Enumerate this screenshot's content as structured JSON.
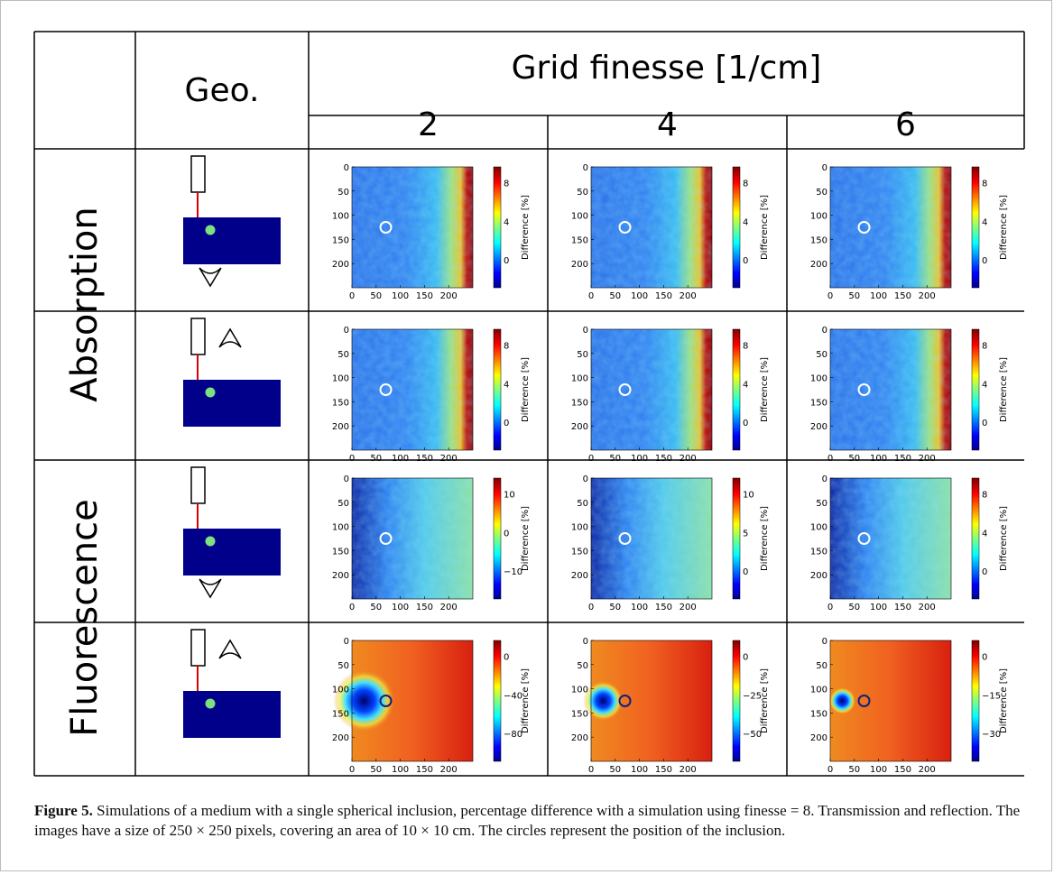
{
  "header": {
    "geo": "Geo.",
    "grid_title": "Grid finesse [1/cm]",
    "finesse": [
      "2",
      "4",
      "6"
    ]
  },
  "groups": [
    "Absorption",
    "Fluorescence"
  ],
  "axis": {
    "range": [
      0,
      250
    ],
    "ticks": [
      0,
      50,
      100,
      150,
      200
    ],
    "colorbar_label": "Difference [%]"
  },
  "panels": [
    [
      [
        "8",
        "4",
        "0"
      ],
      [
        "8",
        "4",
        "0"
      ],
      [
        "8",
        "4",
        "0"
      ]
    ],
    [
      [
        "8",
        "4",
        "0"
      ],
      [
        "8",
        "4",
        "0"
      ],
      [
        "8",
        "4",
        "0"
      ]
    ],
    [
      [
        "10",
        "0",
        "−10"
      ],
      [
        "10",
        "5",
        "0"
      ],
      [
        "8",
        "4",
        "0"
      ]
    ],
    [
      [
        "0",
        "−40",
        "−80"
      ],
      [
        "0",
        "−25",
        "−50"
      ],
      [
        "0",
        "−15",
        "−30"
      ]
    ]
  ],
  "caption": {
    "label": "Figure 5.",
    "text": "Simulations of a medium with a single spherical inclusion, percentage difference with a simulation using finesse = 8. Transmission and reflection. The images have a size of 250 × 250 pixels, covering an area of 10 × 10 cm. The circles represent the position of the inclusion."
  }
}
